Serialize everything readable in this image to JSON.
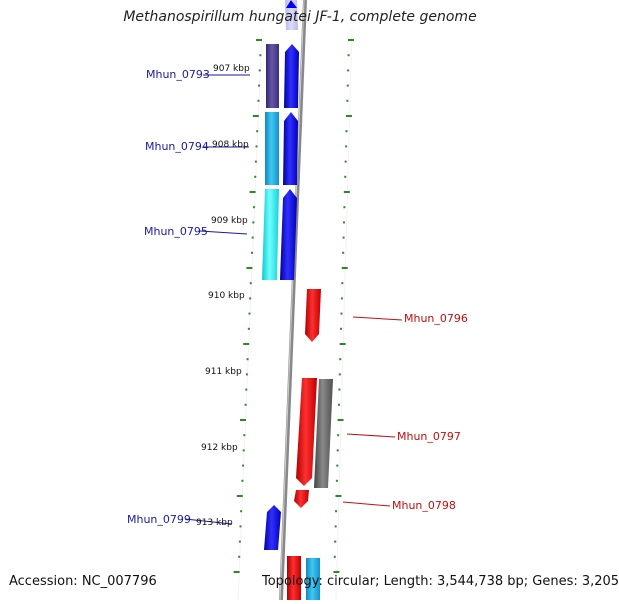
{
  "title": "Methanospirillum hungatei JF-1, complete genome",
  "footer": {
    "accession": "Accession: NC_007796",
    "topology": "Topology: circular; Length: 3,544,738 bp; Genes: 3,205"
  },
  "kbp_labels": [
    "907 kbp",
    "908 kbp",
    "909 kbp",
    "910 kbp",
    "911 kbp",
    "912 kbp",
    "913 kbp"
  ],
  "genes": [
    {
      "label": "Mhun_0793",
      "color": "#1a1aa6"
    },
    {
      "label": "Mhun_0794",
      "color": "#1a1aa6"
    },
    {
      "label": "Mhun_0795",
      "color": "#1a1aa6"
    },
    {
      "label": "Mhun_0796",
      "color": "#c01010"
    },
    {
      "label": "Mhun_0797",
      "color": "#c01010"
    },
    {
      "label": "Mhun_0798",
      "color": "#c01010"
    },
    {
      "label": "Mhun_0799",
      "color": "#1a1aa6"
    }
  ],
  "colors": {
    "forward_strand": "#0000ee",
    "reverse_strand": "#ee0000",
    "backbone": "#888888",
    "tick": "#2a8a2a",
    "cog_purple": "#4b3f8c",
    "cog_sky": "#22aadd",
    "cog_cyan": "#22eeee",
    "cog_gray": "#666666"
  }
}
